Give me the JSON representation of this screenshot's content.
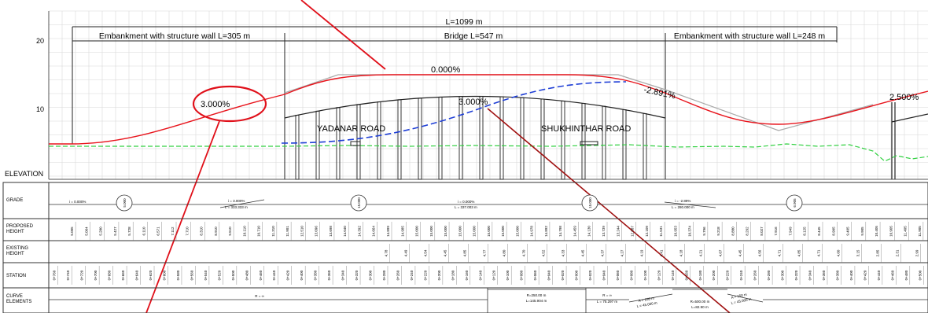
{
  "total_length": "L=1099 m",
  "embankment_left": "Embankment with structure wall L=305 m",
  "bridge": "Bridge L=547 m",
  "embankment_right": "Embankment with structure wall L=248 m",
  "y_ticks": [
    "20",
    "10"
  ],
  "elevation_label": "ELEVATION",
  "grades": {
    "g1": "3.000%",
    "g2": "0.000%",
    "g3": "-2.891%",
    "g4": "2.500%",
    "bridge_grade": "3.000%"
  },
  "roads": {
    "left": "YADANAR ROAD",
    "right": "SHUKHINTHAR ROAD"
  },
  "table": {
    "row_labels": {
      "grade": "GRADE",
      "proposed": "PROPOSED HEIGHT",
      "existing": "EXISTING HEIGHT",
      "station": "STATION",
      "curve": "CURVE ELEMENTS"
    },
    "grade_entries": {
      "i1": "i = 0.000%",
      "i2": "i = 3.000%",
      "l2": "L = 333.333 m",
      "i3": "i = 0.000%",
      "l3": "L = 337.003 m",
      "i4": "i = -2.89%",
      "l4": "L = 280.000 m"
    },
    "circles": [
      "5.000",
      "15.000",
      "15.000",
      "6.905"
    ],
    "proposed_heights": [
      "5.005",
      "5.064",
      "5.280",
      "5.427",
      "5.728",
      "6.110",
      "6.571",
      "7.112",
      "7.710",
      "8.310",
      "8.910",
      "9.510",
      "10.110",
      "10.710",
      "11.310",
      "11.901",
      "12.510",
      "13.096",
      "13.698",
      "14.040",
      "14.392",
      "14.664",
      "14.899",
      "14.985",
      "15.000",
      "15.000",
      "15.000",
      "15.000",
      "15.000",
      "15.000",
      "15.000",
      "15.000",
      "14.978",
      "14.892",
      "14.798",
      "14.459",
      "14.130",
      "13.739",
      "13.244",
      "12.687",
      "12.109",
      "11.531",
      "10.953",
      "10.374",
      "9.796",
      "9.218",
      "8.880",
      "8.292",
      "8.027",
      "7.916",
      "7.949",
      "8.125",
      "8.445",
      "8.905",
      "9.405",
      "9.905",
      "10.405",
      "10.905",
      "11.405",
      "11.905"
    ],
    "existing_heights": [
      "4.78",
      "4.49",
      "4.54",
      "4.45",
      "4.85",
      "4.77",
      "4.80",
      "4.70",
      "4.52",
      "4.33",
      "4.45",
      "4.37",
      "4.27",
      "4.19",
      "4.41",
      "4.18",
      "4.21",
      "4.67",
      "4.45",
      "4.56",
      "4.71",
      "4.85",
      "4.71",
      "4.60",
      "3.15",
      "2.85",
      "2.31",
      "2.99"
    ],
    "stations": [
      "0+760",
      "0+740",
      "0+720",
      "0+700",
      "0+680",
      "0+660",
      "0+640",
      "0+620",
      "0+600",
      "0+580",
      "0+560",
      "0+540",
      "0+520",
      "0+500",
      "0+480",
      "0+460",
      "0+440",
      "0+420",
      "0+400",
      "0+380",
      "0+360",
      "0+340",
      "0+320",
      "0+300",
      "0+280",
      "0+260",
      "0+240",
      "0+220",
      "0+200",
      "0+180",
      "0+160",
      "0+140",
      "0+120",
      "0+100",
      "0+080",
      "0+060",
      "0+040",
      "0+020",
      "0+000",
      "0+020",
      "0+040",
      "0+060",
      "0+080",
      "0+100",
      "0+120",
      "0+140",
      "0+160",
      "0+180",
      "0+200",
      "0+220",
      "0+240",
      "0+260",
      "0+280",
      "0+300",
      "0+320",
      "0+340",
      "0+360",
      "0+380",
      "0+400",
      "0+420",
      "0+440",
      "0+460",
      "0+480",
      "0+500"
    ],
    "curve": {
      "r_inf1": "R = ∞",
      "r250": "R=250.00 m",
      "l145": "L=145.904 m",
      "r_inf2": "R = ∞",
      "l75": "L = 75.297 m",
      "a150_1": "A = 150 m",
      "l45_1": "L = 45.000 m",
      "r500": "R=500.00 m",
      "l82": "L=82.90 m",
      "a150_2": "A = 150 m",
      "l45_2": "L = 45.000 m"
    }
  },
  "colors": {
    "design_line": "#e8141c",
    "annotation": "#e0101a",
    "blue_dashed": "#1f3fd6",
    "green_dashed": "#30d040",
    "gray_line": "#a9a9a9",
    "grid": "#d8d8d8"
  }
}
